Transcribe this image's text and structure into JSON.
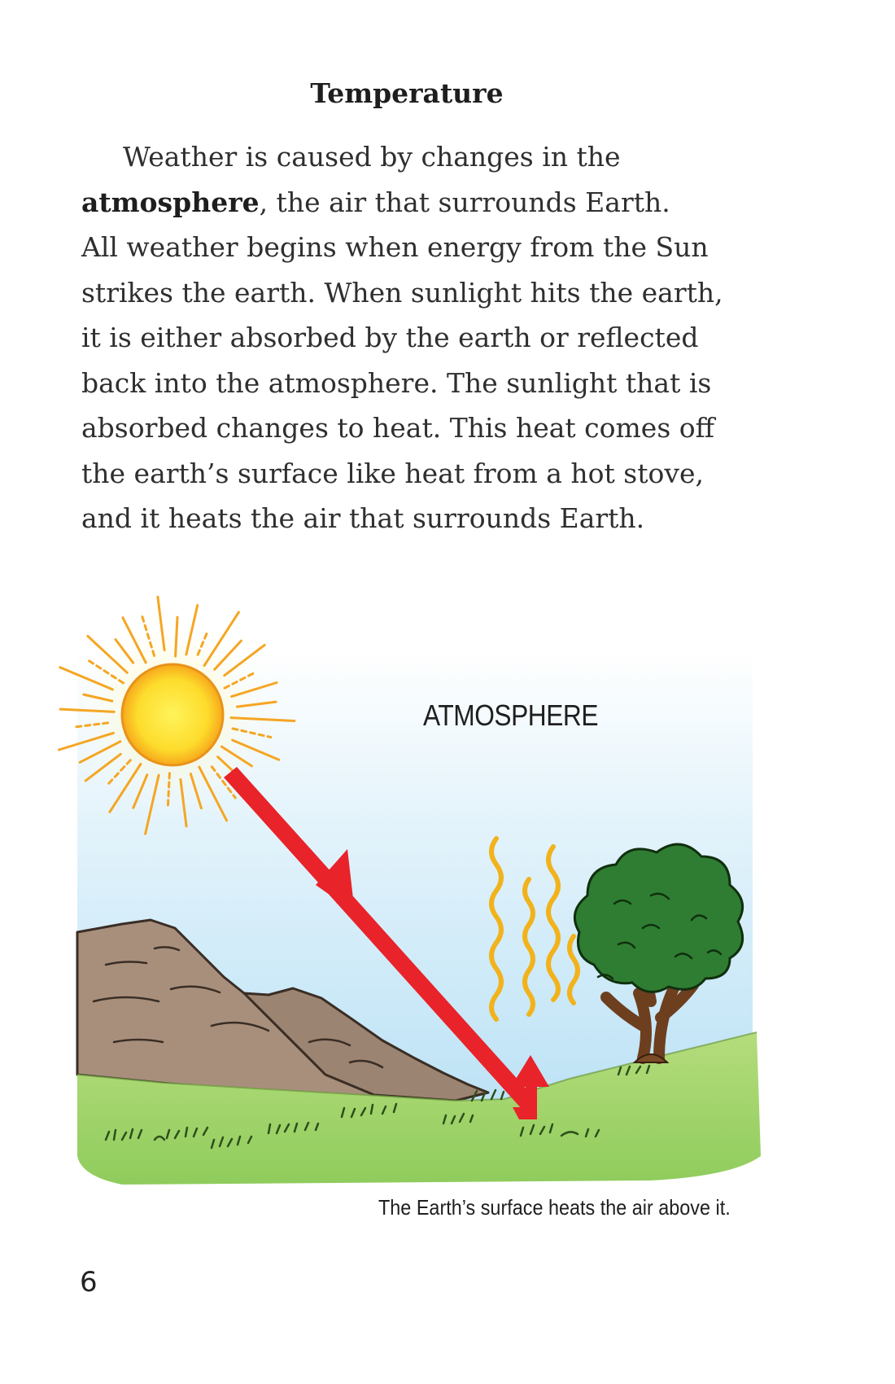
{
  "heading": "Temperature",
  "paragraph": {
    "line1": "Weather is caused by changes in the",
    "line2_term": "atmosphere",
    "line2_rest": ", the air that surrounds Earth.",
    "line3": "All weather begins when energy from the Sun",
    "line4": "strikes the earth. When sunlight hits the earth,",
    "line5": "it is either absorbed by the earth or reflected",
    "line6": "back into the atmosphere. The sunlight that is",
    "line7": "absorbed changes to heat. This heat comes off",
    "line8": "the earth’s surface like heat from a hot stove,",
    "line9": "and it heats the air that surrounds Earth."
  },
  "illustration": {
    "atmosphere_label": "ATMOSPHERE",
    "caption": "The Earth’s surface heats the air above it.",
    "colors": {
      "sky": "#bfe4f6",
      "sun": "#fdd835",
      "sun_rays": "#f5a623",
      "arrow": "#e8232a",
      "ground": "#9fd36a",
      "mountain": "#a58d7a",
      "tree_leaves": "#2e7d32",
      "tree_trunk": "#7b4a26",
      "heat_waves": "#f4b400"
    }
  },
  "page_number": "6"
}
